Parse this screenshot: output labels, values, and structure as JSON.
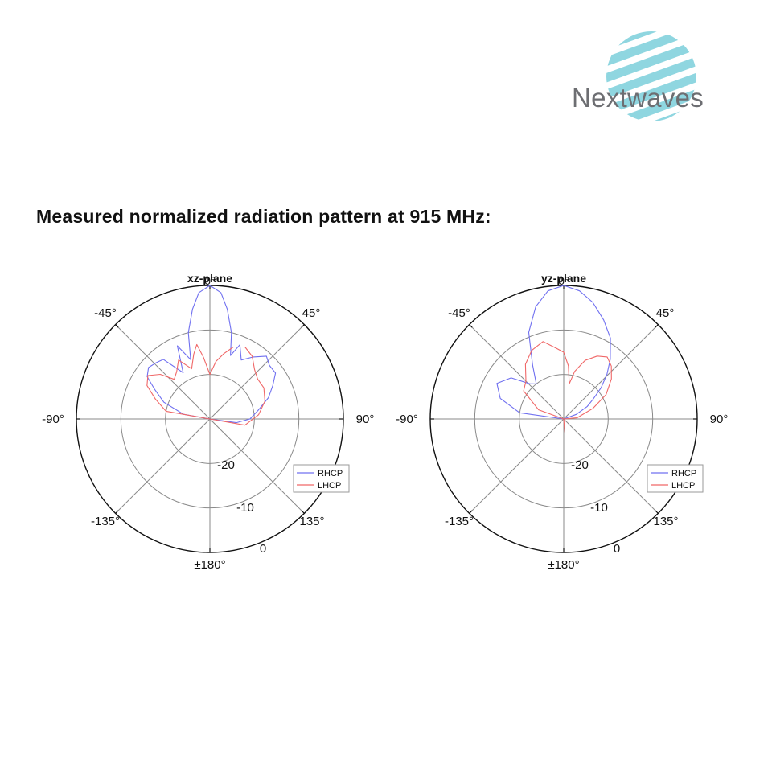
{
  "logo": {
    "text": "Nextwaves",
    "stripe_color": "#8fd6e0",
    "text_color": "#6d6e72"
  },
  "heading": "Measured normalized radiation pattern at 915 MHz:",
  "chart_data": [
    {
      "type": "polar-line",
      "title": "xz-plane",
      "zero_marker": "0°",
      "theta_labels": [
        "-45°",
        "45°",
        "-90°",
        "90°",
        "-135°",
        "135°",
        "±180°"
      ],
      "r_labels": [
        "-20",
        "-10",
        "0"
      ],
      "rlim": [
        -30,
        0
      ],
      "legend": {
        "position": "bottom-right",
        "entries": [
          "RHCP",
          "LHCP"
        ]
      },
      "series": [
        {
          "name": "RHCP",
          "color": "#7070f0",
          "points": [
            [
              -180,
              -40
            ],
            [
              -90,
              -40
            ],
            [
              -80,
              -24
            ],
            [
              -70,
              -19
            ],
            [
              -62,
              -16
            ],
            [
              -56,
              -13
            ],
            [
              -50,
              -12
            ],
            [
              -44,
              -12.5
            ],
            [
              -38,
              -13
            ],
            [
              -30,
              -18
            ],
            [
              -24,
              -12
            ],
            [
              -18,
              -16
            ],
            [
              -14,
              -10
            ],
            [
              -9,
              -5
            ],
            [
              -5,
              -1.5
            ],
            [
              0,
              0
            ],
            [
              5,
              -1.5
            ],
            [
              9,
              -5
            ],
            [
              14,
              -10
            ],
            [
              18,
              -15
            ],
            [
              22,
              -12
            ],
            [
              28,
              -15
            ],
            [
              35,
              -13
            ],
            [
              42,
              -11
            ],
            [
              48,
              -12
            ],
            [
              55,
              -12
            ],
            [
              62,
              -14
            ],
            [
              70,
              -16
            ],
            [
              80,
              -19
            ],
            [
              90,
              -21
            ],
            [
              98,
              -24
            ],
            [
              110,
              -40
            ],
            [
              180,
              -40
            ]
          ]
        },
        {
          "name": "LHCP",
          "color": "#f06868",
          "points": [
            [
              -180,
              -40
            ],
            [
              -95,
              -40
            ],
            [
              -80,
              -20
            ],
            [
              -70,
              -17
            ],
            [
              -62,
              -14
            ],
            [
              -55,
              -13
            ],
            [
              -48,
              -15
            ],
            [
              -42,
              -18
            ],
            [
              -35,
              -17
            ],
            [
              -28,
              -15
            ],
            [
              -20,
              -18
            ],
            [
              -14,
              -15
            ],
            [
              -10,
              -13
            ],
            [
              -6,
              -16
            ],
            [
              0,
              -20
            ],
            [
              6,
              -17
            ],
            [
              12,
              -15
            ],
            [
              18,
              -13
            ],
            [
              26,
              -12
            ],
            [
              34,
              -13
            ],
            [
              42,
              -15
            ],
            [
              50,
              -16
            ],
            [
              60,
              -16
            ],
            [
              72,
              -17
            ],
            [
              85,
              -19
            ],
            [
              100,
              -22
            ],
            [
              115,
              -40
            ],
            [
              180,
              -40
            ]
          ]
        }
      ]
    },
    {
      "type": "polar-line",
      "title": "yz-plane",
      "zero_marker": "0°",
      "theta_labels": [
        "-45°",
        "45°",
        "-90°",
        "90°",
        "-135°",
        "135°",
        "±180°"
      ],
      "r_labels": [
        "-20",
        "-10",
        "0"
      ],
      "rlim": [
        -30,
        0
      ],
      "legend": {
        "position": "bottom-right",
        "entries": [
          "RHCP",
          "LHCP"
        ]
      },
      "series": [
        {
          "name": "RHCP",
          "color": "#7070f0",
          "points": [
            [
              -180,
              -40
            ],
            [
              -95,
              -40
            ],
            [
              -82,
              -20
            ],
            [
              -72,
              -15
            ],
            [
              -62,
              -13
            ],
            [
              -52,
              -15
            ],
            [
              -44,
              -19
            ],
            [
              -38,
              -20
            ],
            [
              -30,
              -16
            ],
            [
              -22,
              -9
            ],
            [
              -14,
              -4
            ],
            [
              -7,
              -1
            ],
            [
              0,
              0
            ],
            [
              7,
              -1
            ],
            [
              14,
              -3
            ],
            [
              22,
              -6
            ],
            [
              30,
              -9
            ],
            [
              38,
              -13
            ],
            [
              44,
              -16
            ],
            [
              50,
              -19
            ],
            [
              56,
              -22
            ],
            [
              62,
              -24
            ],
            [
              70,
              -27
            ],
            [
              80,
              -30
            ],
            [
              90,
              -40
            ],
            [
              180,
              -40
            ]
          ]
        },
        {
          "name": "LHCP",
          "color": "#f06868",
          "points": [
            [
              -180,
              -40
            ],
            [
              -90,
              -40
            ],
            [
              -70,
              -24
            ],
            [
              -55,
              -19
            ],
            [
              -45,
              -18
            ],
            [
              -35,
              -15
            ],
            [
              -25,
              -13
            ],
            [
              -15,
              -12
            ],
            [
              -6,
              -14
            ],
            [
              0,
              -15
            ],
            [
              5,
              -18
            ],
            [
              9,
              -22
            ],
            [
              13,
              -19
            ],
            [
              20,
              -16
            ],
            [
              28,
              -14
            ],
            [
              35,
              -13
            ],
            [
              42,
              -14
            ],
            [
              50,
              -16
            ],
            [
              60,
              -19
            ],
            [
              70,
              -23
            ],
            [
              85,
              -27
            ],
            [
              100,
              -40
            ],
            [
              150,
              -40
            ],
            [
              170,
              -30
            ],
            [
              175,
              -27
            ],
            [
              180,
              -40
            ]
          ]
        }
      ]
    }
  ]
}
